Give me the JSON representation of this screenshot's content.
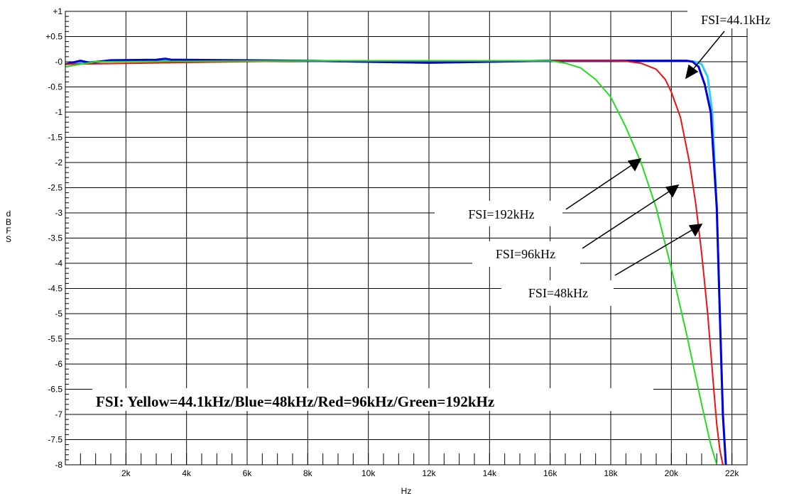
{
  "chart_data": {
    "type": "line",
    "title": "",
    "xlabel": "Hz",
    "ylabel": "dBFS",
    "xlim": [
      0,
      22500
    ],
    "ylim": [
      -8,
      1
    ],
    "grid": true,
    "x_ticks": [
      {
        "value": 2000,
        "label": "2k"
      },
      {
        "value": 4000,
        "label": "4k"
      },
      {
        "value": 6000,
        "label": "6k"
      },
      {
        "value": 8000,
        "label": "8k"
      },
      {
        "value": 10000,
        "label": "10k"
      },
      {
        "value": 12000,
        "label": "12k"
      },
      {
        "value": 14000,
        "label": "14k"
      },
      {
        "value": 16000,
        "label": "16k"
      },
      {
        "value": 18000,
        "label": "18k"
      },
      {
        "value": 20000,
        "label": "20k"
      },
      {
        "value": 22000,
        "label": "22k"
      }
    ],
    "y_ticks": [
      {
        "value": 1,
        "label": "+1"
      },
      {
        "value": 0.5,
        "label": "+0.5"
      },
      {
        "value": 0,
        "label": "-0"
      },
      {
        "value": -0.5,
        "label": "-0.5"
      },
      {
        "value": -1,
        "label": "-1"
      },
      {
        "value": -1.5,
        "label": "-1.5"
      },
      {
        "value": -2,
        "label": "-2"
      },
      {
        "value": -2.5,
        "label": "-2.5"
      },
      {
        "value": -3,
        "label": "-3"
      },
      {
        "value": -3.5,
        "label": "-3.5"
      },
      {
        "value": -4,
        "label": "-4"
      },
      {
        "value": -4.5,
        "label": "-4.5"
      },
      {
        "value": -5,
        "label": "-5"
      },
      {
        "value": -5.5,
        "label": "-5.5"
      },
      {
        "value": -6,
        "label": "-6"
      },
      {
        "value": -6.5,
        "label": "-6.5"
      },
      {
        "value": -7,
        "label": "-7"
      },
      {
        "value": -7.5,
        "label": "-7.5"
      },
      {
        "value": -8,
        "label": "-8"
      }
    ],
    "series": [
      {
        "key": "yellow-44k",
        "color": "#33ccff",
        "width": 3,
        "x": [
          0,
          1000,
          3000,
          8000,
          12000,
          16000,
          18000,
          20000,
          20500,
          20800,
          21000,
          21200,
          21350,
          21500,
          21600,
          21700,
          21800
        ],
        "y": [
          -0.05,
          0.0,
          0.03,
          0.02,
          -0.02,
          0.02,
          0.02,
          0.02,
          0.02,
          0.0,
          -0.05,
          -0.3,
          -1.0,
          -2.9,
          -5.0,
          -7.0,
          -8.0
        ]
      },
      {
        "key": "blue-48k",
        "color": "#0000dd",
        "width": 3,
        "x": [
          0,
          500,
          800,
          1500,
          3000,
          3300,
          3500,
          8000,
          12000,
          16000,
          18000,
          20000,
          20500,
          20700,
          20900,
          21100,
          21300,
          21500,
          21600,
          21700,
          21800
        ],
        "y": [
          -0.05,
          0.02,
          -0.02,
          0.03,
          0.04,
          0.06,
          0.04,
          0.02,
          -0.02,
          0.02,
          0.02,
          0.02,
          0.02,
          0.0,
          -0.1,
          -0.45,
          -1.0,
          -2.9,
          -5.0,
          -7.0,
          -8.0
        ]
      },
      {
        "key": "red-96k",
        "color": "#ee1111",
        "width": 2,
        "x": [
          0,
          8000,
          16000,
          18000,
          18500,
          19000,
          19500,
          19800,
          20000,
          20300,
          20600,
          20800,
          21000,
          21200,
          21400,
          21500,
          21600,
          21700
        ],
        "y": [
          -0.05,
          0.02,
          0.02,
          0.02,
          0.01,
          -0.03,
          -0.15,
          -0.35,
          -0.6,
          -1.1,
          -2.0,
          -2.8,
          -3.8,
          -5.0,
          -6.5,
          -7.2,
          -7.7,
          -8.0
        ]
      },
      {
        "key": "green-192k",
        "color": "#22dd22",
        "width": 2,
        "x": [
          0,
          1000,
          8000,
          16000,
          16500,
          17000,
          17500,
          18000,
          18500,
          19000,
          19500,
          20000,
          20500,
          21000,
          21300,
          21500
        ],
        "y": [
          -0.1,
          0.0,
          0.02,
          0.02,
          -0.03,
          -0.12,
          -0.35,
          -0.7,
          -1.3,
          -2.0,
          -2.9,
          -4.1,
          -5.4,
          -6.8,
          -7.6,
          -8.0
        ]
      }
    ],
    "annotations": [
      {
        "key": "fsi-44",
        "text": "FSI=44.1kHz"
      },
      {
        "key": "fsi-192",
        "text": "FSI=192kHz"
      },
      {
        "key": "fsi-96",
        "text": "FSI=96kHz"
      },
      {
        "key": "fsi-48",
        "text": "FSI=48kHz"
      }
    ],
    "caption": "FSI:  Yellow=44.1kHz/Blue=48kHz/Red=96kHz/Green=192kHz"
  }
}
